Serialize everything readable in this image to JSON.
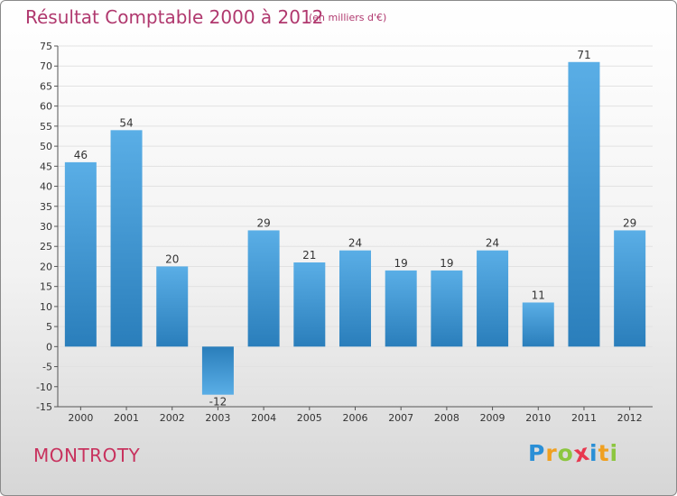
{
  "header": {
    "title": "Résultat Comptable 2000 à 2012",
    "subtitle": "(en milliers d'€)"
  },
  "footer": {
    "commune": "MONTROTY",
    "brand": "Proxiti",
    "brand_letters": [
      {
        "ch": "P",
        "color": "#2a8fd6"
      },
      {
        "ch": "r",
        "color": "#f0a020"
      },
      {
        "ch": "o",
        "color": "#8cc63f"
      },
      {
        "ch": "x",
        "color": "#e8384f"
      },
      {
        "ch": "i",
        "color": "#2a8fd6"
      },
      {
        "ch": "t",
        "color": "#f0a020"
      },
      {
        "ch": "i",
        "color": "#8cc63f"
      }
    ]
  },
  "colors": {
    "bar_top": "#5aaee6",
    "bar_bottom": "#2a7ebb",
    "title": "#b0386e",
    "grid": "#e2e2e2"
  },
  "chart_data": {
    "type": "bar",
    "title": "Résultat Comptable 2000 à 2012",
    "subtitle": "(en milliers d'€)",
    "xlabel": "",
    "ylabel": "",
    "categories": [
      "2000",
      "2001",
      "2002",
      "2003",
      "2004",
      "2005",
      "2006",
      "2007",
      "2008",
      "2009",
      "2010",
      "2011",
      "2012"
    ],
    "values": [
      46,
      54,
      20,
      -12,
      29,
      21,
      24,
      19,
      19,
      24,
      11,
      71,
      29
    ],
    "ylim": [
      -15,
      75
    ],
    "ytick_step": 5,
    "grid": true
  }
}
